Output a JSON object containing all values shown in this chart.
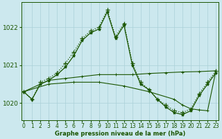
{
  "title": "Graphe pression niveau de la mer (hPa)",
  "bg_color": "#cce8ee",
  "grid_color": "#aad0d8",
  "line_color": "#1a5500",
  "x_ticks": [
    0,
    1,
    2,
    3,
    4,
    5,
    6,
    7,
    8,
    9,
    10,
    11,
    12,
    13,
    14,
    15,
    16,
    17,
    18,
    19,
    20,
    21,
    22,
    23
  ],
  "y_ticks": [
    1020,
    1021,
    1022
  ],
  "ylim": [
    1019.55,
    1022.65
  ],
  "xlim": [
    -0.3,
    23.3
  ],
  "series": [
    {
      "x": [
        0,
        1,
        2,
        3,
        4,
        5,
        6,
        7,
        8,
        9,
        10,
        11,
        12,
        13,
        14,
        15,
        16,
        17,
        18,
        19,
        20,
        21,
        22,
        23
      ],
      "y": [
        1020.3,
        1020.1,
        1020.55,
        1020.65,
        1020.8,
        1021.05,
        1021.35,
        1021.7,
        1021.9,
        1022.0,
        1022.45,
        1021.75,
        1022.1,
        1021.05,
        1020.55,
        1020.35,
        1020.1,
        1019.95,
        1019.8,
        1019.75,
        1019.85,
        1020.25,
        1020.55,
        1020.85
      ],
      "linestyle": "dotted",
      "marker": "+",
      "linewidth": 0.9,
      "markersize": 4
    },
    {
      "x": [
        0,
        1,
        2,
        3,
        4,
        5,
        6,
        7,
        8,
        9,
        10,
        11,
        12,
        13,
        14,
        15,
        16,
        17,
        18,
        19,
        20,
        21,
        22,
        23
      ],
      "y": [
        1020.3,
        1020.1,
        1020.5,
        1020.6,
        1020.75,
        1020.95,
        1021.25,
        1021.65,
        1021.85,
        1021.95,
        1022.4,
        1021.7,
        1022.05,
        1021.0,
        1020.5,
        1020.35,
        1020.1,
        1019.9,
        1019.75,
        1019.7,
        1019.8,
        1020.2,
        1020.5,
        1020.8
      ],
      "linestyle": "solid",
      "marker": "*",
      "linewidth": 0.9,
      "markersize": 3
    },
    {
      "x": [
        0,
        3,
        5,
        7,
        9,
        11,
        13,
        15,
        17,
        19,
        21,
        23
      ],
      "y": [
        1020.3,
        1020.6,
        1020.65,
        1020.7,
        1020.75,
        1020.75,
        1020.75,
        1020.78,
        1020.8,
        1020.82,
        1020.83,
        1020.85
      ],
      "linestyle": "solid",
      "marker": "+",
      "linewidth": 0.8,
      "markersize": 3
    },
    {
      "x": [
        0,
        3,
        6,
        9,
        12,
        15,
        18,
        19,
        20,
        21,
        22,
        23
      ],
      "y": [
        1020.3,
        1020.5,
        1020.55,
        1020.55,
        1020.45,
        1020.3,
        1020.1,
        1019.95,
        1019.85,
        1019.82,
        1019.8,
        1020.85
      ],
      "linestyle": "solid",
      "marker": "+",
      "linewidth": 0.8,
      "markersize": 3
    }
  ]
}
